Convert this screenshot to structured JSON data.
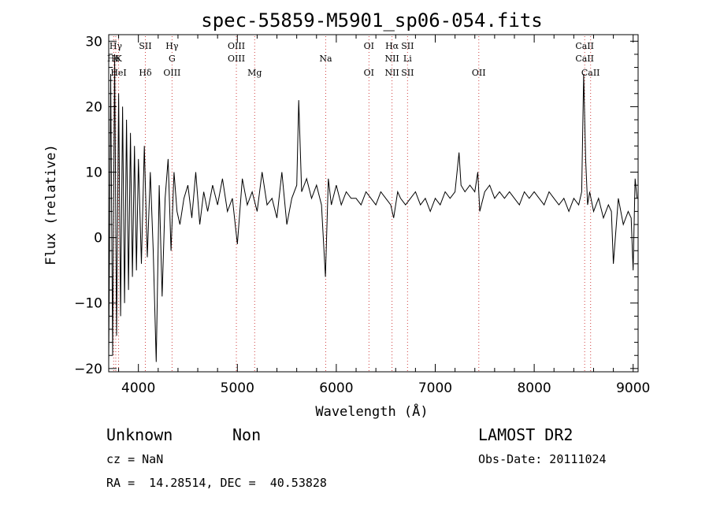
{
  "chart_data": {
    "type": "line",
    "title": "spec-55859-M5901_sp06-054.fits",
    "xlabel": "Wavelength (Å)",
    "ylabel": "Flux (relative)",
    "xlim": [
      3700,
      9050
    ],
    "ylim": [
      -20.5,
      31
    ],
    "xticks": [
      4000,
      5000,
      6000,
      7000,
      8000,
      9000
    ],
    "yticks": [
      -20,
      -10,
      0,
      10,
      20,
      30
    ],
    "grid": false,
    "series": [
      {
        "x": [
          3700,
          3720,
          3740,
          3760,
          3780,
          3800,
          3820,
          3840,
          3860,
          3880,
          3900,
          3920,
          3940,
          3960,
          3980,
          4000,
          4030,
          4060,
          4090,
          4120,
          4150,
          4180,
          4210,
          4240,
          4270,
          4300,
          4330,
          4360,
          4390,
          4420,
          4460,
          4500,
          4540,
          4580,
          4620,
          4660,
          4700,
          4750,
          4800,
          4850,
          4900,
          4950,
          5000,
          5050,
          5100,
          5150,
          5200,
          5250,
          5300,
          5350,
          5400,
          5450,
          5500,
          5550,
          5600,
          5620,
          5650,
          5700,
          5750,
          5800,
          5850,
          5890,
          5920,
          5950,
          6000,
          6050,
          6100,
          6150,
          6200,
          6250,
          6300,
          6350,
          6400,
          6450,
          6500,
          6550,
          6580,
          6620,
          6650,
          6700,
          6750,
          6800,
          6850,
          6900,
          6950,
          7000,
          7050,
          7100,
          7150,
          7200,
          7240,
          7260,
          7300,
          7350,
          7400,
          7430,
          7450,
          7500,
          7550,
          7600,
          7650,
          7700,
          7750,
          7800,
          7850,
          7900,
          7950,
          8000,
          8050,
          8100,
          8150,
          8200,
          8250,
          8300,
          8350,
          8400,
          8450,
          8480,
          8500,
          8520,
          8540,
          8560,
          8600,
          8650,
          8700,
          8750,
          8780,
          8800,
          8850,
          8900,
          8950,
          8980,
          9000,
          9020,
          9040
        ],
        "y": [
          -19,
          25,
          -18,
          28,
          -15,
          22,
          -12,
          20,
          -10,
          18,
          -8,
          16,
          -6,
          14,
          -5,
          12,
          -4,
          14,
          -3,
          10,
          -2,
          -19,
          8,
          -9,
          6,
          12,
          -2,
          10,
          4,
          2,
          6,
          8,
          3,
          10,
          2,
          7,
          4,
          8,
          5,
          9,
          4,
          6,
          -1,
          9,
          5,
          7,
          4,
          10,
          5,
          6,
          3,
          10,
          2,
          6,
          8,
          21,
          7,
          9,
          6,
          8,
          5,
          -6,
          9,
          5,
          8,
          5,
          7,
          6,
          6,
          5,
          7,
          6,
          5,
          7,
          6,
          5,
          3,
          7,
          6,
          5,
          6,
          7,
          5,
          6,
          4,
          6,
          5,
          7,
          6,
          7,
          13,
          8,
          7,
          8,
          7,
          10,
          4,
          7,
          8,
          6,
          7,
          6,
          7,
          6,
          5,
          7,
          6,
          7,
          6,
          5,
          7,
          6,
          5,
          6,
          4,
          6,
          5,
          7,
          25,
          12,
          5,
          7,
          4,
          6,
          3,
          5,
          4,
          -4,
          6,
          2,
          4,
          3,
          -5,
          9,
          6
        ]
      }
    ],
    "spectral_lines": [
      {
        "top": "Hγ",
        "mid": "",
        "bot": "",
        "x": 3771
      },
      {
        "top": "",
        "mid": "H6",
        "bot": "",
        "x": 3750
      },
      {
        "top": "",
        "mid": "K",
        "bot": "HeI",
        "x": 3800
      },
      {
        "top": "SII",
        "mid": "",
        "bot": "Hδ",
        "x": 4070
      },
      {
        "top": "Hγ",
        "mid": "G",
        "bot": "OIII",
        "x": 4340
      },
      {
        "top": "OIII",
        "mid": "OIII",
        "bot": "",
        "x": 4990
      },
      {
        "top": "",
        "mid": "",
        "bot": "Mg",
        "x": 5175
      },
      {
        "top": "",
        "mid": "Na",
        "bot": "",
        "x": 5893
      },
      {
        "top": "OI",
        "mid": "",
        "bot": "OI",
        "x": 6330
      },
      {
        "top": "Hα",
        "mid": "NII",
        "bot": "NII",
        "x": 6563
      },
      {
        "top": "SII",
        "mid": "Li",
        "bot": "SII",
        "x": 6720
      },
      {
        "top": "",
        "mid": "",
        "bot": "OII",
        "x": 7440
      },
      {
        "top": "CaII",
        "mid": "CaII",
        "bot": "",
        "x": 8510
      },
      {
        "top": "",
        "mid": "",
        "bot": "CaII",
        "x": 8570
      }
    ]
  },
  "info": {
    "class": "Unknown",
    "subclass": "Non",
    "survey": "LAMOST DR2",
    "cz": "cz = NaN",
    "obs_date": "Obs-Date: 20111024",
    "coords": "RA =  14.28514, DEC =  40.53828"
  }
}
